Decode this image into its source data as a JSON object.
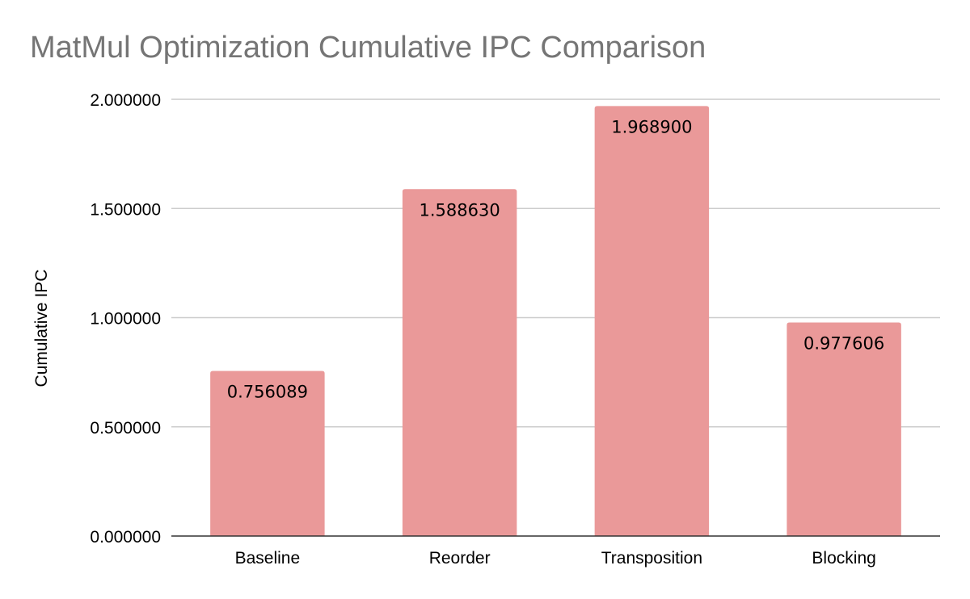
{
  "chart_data": {
    "type": "bar",
    "title": "MatMul Optimization Cumulative IPC Comparison",
    "xlabel": "",
    "ylabel": "Cumulative IPC",
    "categories": [
      "Baseline",
      "Reorder",
      "Transposition",
      "Blocking"
    ],
    "values": [
      0.756089,
      1.58863,
      1.9689,
      0.977606
    ],
    "data_labels": [
      "0.756089",
      "1.588630",
      "1.968900",
      "0.977606"
    ],
    "ylim": [
      0,
      2
    ],
    "yticks": [
      0,
      0.5,
      1,
      1.5,
      2
    ],
    "ytick_labels": [
      "0.000000",
      "0.500000",
      "1.000000",
      "1.500000",
      "2.000000"
    ],
    "bar_color": "#ea9999",
    "grid": true,
    "legend": "none"
  }
}
